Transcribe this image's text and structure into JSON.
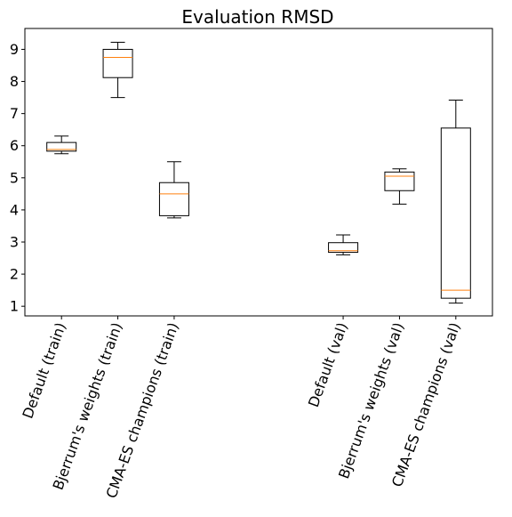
{
  "chart_data": {
    "type": "box",
    "title": "Evaluation RMSD",
    "xlabel": "",
    "ylabel": "",
    "ylim": [
      0.7,
      9.65
    ],
    "yticks": [
      1,
      2,
      3,
      4,
      5,
      6,
      7,
      8,
      9
    ],
    "grid": false,
    "categories": [
      "Default (train)",
      "Bjerrum's weights (train)",
      "CMA-ES champions (train)",
      "Default (val)",
      "Bjerrum's weights (val)",
      "CMA-ES champions (val)"
    ],
    "positions": [
      1,
      2,
      3,
      6,
      7,
      8
    ],
    "xlim": [
      0.35,
      8.65
    ],
    "boxes": [
      {
        "whisker_low": 5.75,
        "q1": 5.83,
        "median": 5.88,
        "q3": 6.1,
        "whisker_high": 6.3
      },
      {
        "whisker_low": 7.5,
        "q1": 8.12,
        "median": 8.75,
        "q3": 9.0,
        "whisker_high": 9.22
      },
      {
        "whisker_low": 3.75,
        "q1": 3.82,
        "median": 4.5,
        "q3": 4.85,
        "whisker_high": 5.5
      },
      {
        "whisker_low": 2.6,
        "q1": 2.68,
        "median": 2.73,
        "q3": 2.98,
        "whisker_high": 3.22
      },
      {
        "whisker_low": 4.18,
        "q1": 4.6,
        "median": 5.05,
        "q3": 5.18,
        "whisker_high": 5.28
      },
      {
        "whisker_low": 1.1,
        "q1": 1.25,
        "median": 1.5,
        "q3": 6.55,
        "whisker_high": 7.42
      }
    ],
    "colors": {
      "box": "#000000",
      "median": "#ff7f0e",
      "background": "#ffffff"
    }
  }
}
